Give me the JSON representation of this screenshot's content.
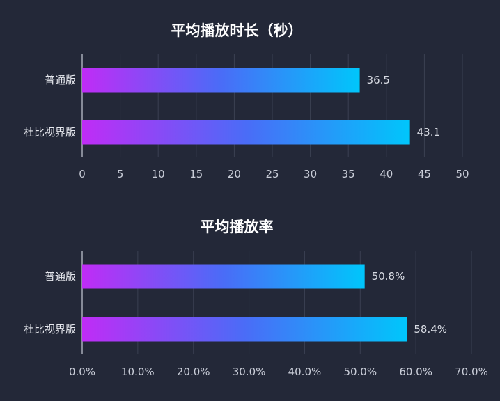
{
  "chart_data": [
    {
      "type": "bar",
      "orientation": "horizontal",
      "title": "平均播放时长（秒）",
      "categories": [
        "普通版",
        "杜比视界版"
      ],
      "values": [
        36.5,
        43.1
      ],
      "value_labels": [
        "36.5",
        "43.1"
      ],
      "xlim": [
        0,
        50
      ],
      "ticks": [
        "0",
        "5",
        "10",
        "15",
        "20",
        "25",
        "30",
        "35",
        "40",
        "45",
        "50"
      ],
      "grid": true,
      "xlabel": "",
      "ylabel": ""
    },
    {
      "type": "bar",
      "orientation": "horizontal",
      "title": "平均播放率",
      "categories": [
        "普通版",
        "杜比视界版"
      ],
      "values": [
        50.8,
        58.4
      ],
      "value_labels": [
        "50.8%",
        "58.4%"
      ],
      "xlim": [
        0,
        70
      ],
      "ticks": [
        "0.0%",
        "10.0%",
        "20.0%",
        "30.0%",
        "40.0%",
        "50.0%",
        "60.0%",
        "70.0%"
      ],
      "grid": true,
      "xlabel": "",
      "ylabel": ""
    }
  ],
  "colors": {
    "background": "#232838",
    "bar_gradient_start": "#c02cf6",
    "bar_gradient_mid": "#4a6cf7",
    "bar_gradient_end": "#00c6fb",
    "grid": "#3a4052",
    "axis": "#c9cdd8"
  }
}
